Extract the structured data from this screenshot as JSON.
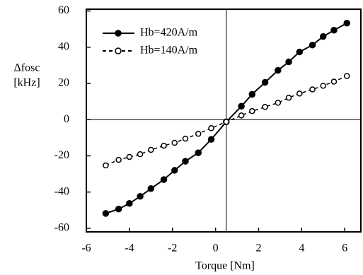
{
  "chart_data": {
    "type": "line",
    "x_label": "Torque [Nm]",
    "y_label": [
      "Δfosc",
      "[kHz]"
    ],
    "x": [
      -5.1,
      -4.5,
      -4.0,
      -3.5,
      -3.0,
      -2.4,
      -1.9,
      -1.4,
      -0.8,
      -0.2,
      0.5,
      1.2,
      1.7,
      2.3,
      2.9,
      3.4,
      3.9,
      4.5,
      5.0,
      5.5,
      6.1
    ],
    "series": [
      {
        "name": "Hb=420A/m",
        "color": "#000000",
        "style": "solid",
        "marker": "filled",
        "values": [
          -51.8,
          -49.4,
          -46.3,
          -42.4,
          -38.1,
          -33.1,
          -28.0,
          -23.0,
          -18.3,
          -10.9,
          -1.2,
          7.4,
          14.0,
          20.6,
          27.2,
          31.9,
          37.4,
          41.2,
          45.9,
          49.4,
          53.3
        ]
      },
      {
        "name": "Hb=140A/m",
        "color": "#000000",
        "style": "dashed",
        "marker": "open",
        "values": [
          -25.3,
          -22.2,
          -20.6,
          -19.1,
          -16.7,
          -14.4,
          -12.8,
          -10.5,
          -7.8,
          -4.7,
          -1.2,
          2.3,
          4.7,
          7.0,
          9.3,
          12.1,
          14.4,
          16.7,
          18.7,
          21.0,
          24.1
        ]
      }
    ],
    "xlim": [
      -6,
      6.75
    ],
    "xticks": [
      -6,
      -4,
      -2,
      0,
      2,
      4,
      6
    ],
    "ylim": [
      -62,
      61
    ],
    "yticks": [
      -60,
      -40,
      -20,
      0,
      20,
      40,
      60
    ],
    "hline": 0,
    "vline": 0.5,
    "legend": "upper left"
  }
}
